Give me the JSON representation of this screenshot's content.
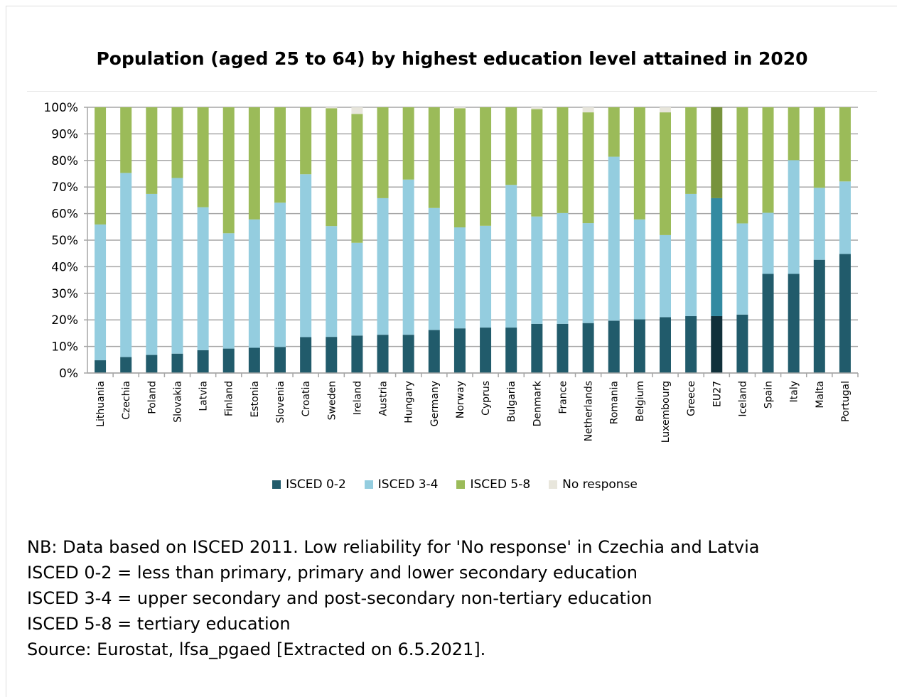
{
  "title": "Population (aged 25 to 64) by highest education level attained in 2020",
  "colors": {
    "isced02": "#215b6b",
    "isced34": "#94cddf",
    "isced58": "#9bbb59",
    "noresp": "#e8e6dc",
    "eu_isced02": "#10303a",
    "eu_isced34": "#338aa1",
    "eu_isced58": "#77933c",
    "grid": "#a6a6a6"
  },
  "legend": [
    {
      "label": "ISCED 0-2",
      "color": "#215b6b"
    },
    {
      "label": "ISCED 3-4",
      "color": "#94cddf"
    },
    {
      "label": "ISCED 5-8",
      "color": "#9bbb59"
    },
    {
      "label": "No response",
      "color": "#e8e6dc"
    }
  ],
  "notes": [
    "NB: Data based on ISCED 2011. Low reliability for 'No response' in Czechia and Latvia",
    "ISCED 0-2 = less than primary, primary and lower secondary education",
    "ISCED 3-4 = upper secondary and post-secondary non-tertiary education",
    "ISCED 5-8 = tertiary education",
    "Source: Eurostat, lfsa_pgaed [Extracted on 6.5.2021]."
  ],
  "chart_data": {
    "type": "bar",
    "stacked": true,
    "highlight_category": "EU27",
    "categories": [
      "Lithuania",
      "Czechia",
      "Poland",
      "Slovakia",
      "Latvia",
      "Finland",
      "Estonia",
      "Slovenia",
      "Croatia",
      "Sweden",
      "Ireland",
      "Austria",
      "Hungary",
      "Germany",
      "Norway",
      "Cyprus",
      "Bulgaria",
      "Denmark",
      "France",
      "Netherlands",
      "Romania",
      "Belgium",
      "Luxembourg",
      "Greece",
      "EU27",
      "Iceland",
      "Spain",
      "Italy",
      "Malta",
      "Portugal"
    ],
    "series": [
      {
        "name": "ISCED 0-2",
        "values": [
          4.8,
          6.0,
          6.8,
          7.3,
          8.6,
          9.2,
          9.5,
          9.8,
          13.5,
          13.6,
          14.1,
          14.4,
          14.4,
          16.2,
          16.8,
          17.1,
          17.1,
          18.5,
          18.5,
          18.8,
          19.7,
          20.2,
          21.0,
          21.4,
          21.4,
          22.0,
          37.3,
          37.3,
          42.6,
          44.8
        ]
      },
      {
        "name": "ISCED 3-4",
        "values": [
          51.1,
          69.3,
          60.6,
          66.1,
          53.8,
          43.4,
          48.3,
          54.3,
          61.3,
          41.7,
          34.9,
          51.4,
          58.4,
          45.9,
          38.0,
          38.3,
          53.7,
          40.4,
          41.7,
          37.6,
          61.7,
          37.6,
          30.9,
          46.0,
          44.4,
          34.3,
          23.0,
          42.8,
          27.1,
          27.3
        ]
      },
      {
        "name": "ISCED 5-8",
        "values": [
          44.1,
          24.7,
          32.6,
          26.6,
          37.6,
          47.4,
          42.2,
          35.9,
          25.2,
          44.3,
          48.5,
          34.2,
          27.2,
          37.9,
          44.8,
          44.6,
          29.2,
          40.4,
          39.8,
          41.7,
          18.6,
          42.2,
          46.2,
          32.6,
          34.2,
          43.7,
          39.7,
          19.9,
          30.3,
          27.9
        ]
      },
      {
        "name": "No response",
        "values": [
          0,
          0,
          0,
          0,
          0,
          0,
          0,
          0,
          0,
          0.4,
          2.5,
          0,
          0,
          0,
          0.4,
          0,
          0,
          0.7,
          0,
          1.9,
          0,
          0,
          1.9,
          0,
          0,
          0,
          0,
          0,
          0,
          0
        ]
      }
    ],
    "ylim": [
      0,
      100
    ],
    "yticks": [
      "0%",
      "10%",
      "20%",
      "30%",
      "40%",
      "50%",
      "60%",
      "70%",
      "80%",
      "90%",
      "100%"
    ],
    "grid": true,
    "legend_position": "bottom"
  }
}
